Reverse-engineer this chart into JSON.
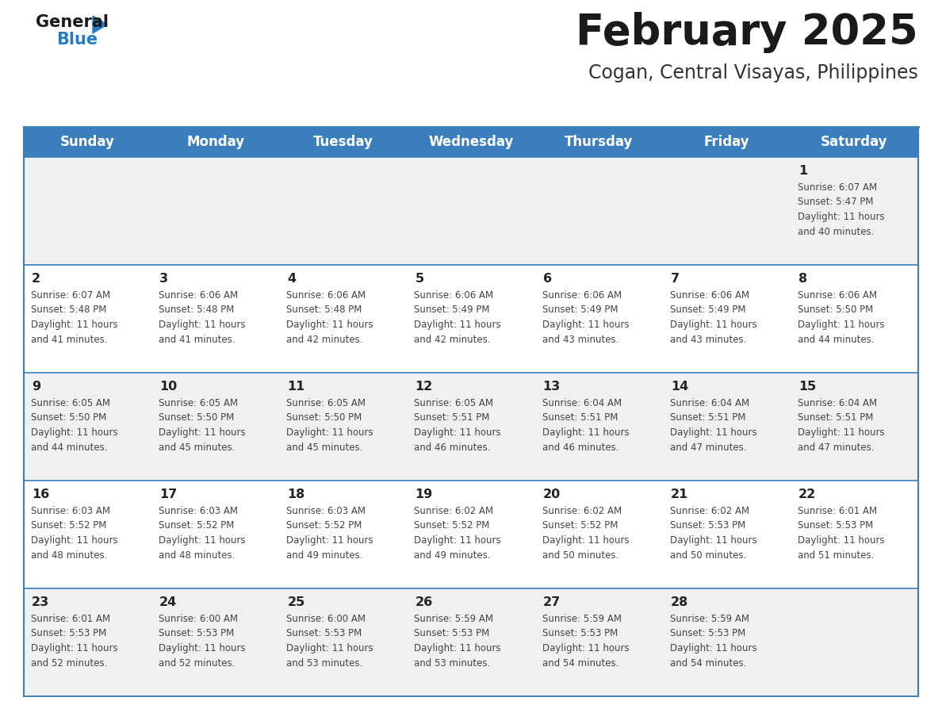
{
  "title": "February 2025",
  "subtitle": "Cogan, Central Visayas, Philippines",
  "days_of_week": [
    "Sunday",
    "Monday",
    "Tuesday",
    "Wednesday",
    "Thursday",
    "Friday",
    "Saturday"
  ],
  "header_bg": "#3a7fbc",
  "header_text": "#ffffff",
  "row_bg_odd": "#f0f0f0",
  "row_bg_even": "#ffffff",
  "border_color": "#3a7fbc",
  "text_color": "#444444",
  "day_num_color": "#222222",
  "logo_general_color": "#1a1a1a",
  "logo_blue_color": "#2a7bbf",
  "title_color": "#1a1a1a",
  "subtitle_color": "#333333",
  "calendar_data": [
    [
      null,
      null,
      null,
      null,
      null,
      null,
      {
        "day": 1,
        "sunrise": "6:07 AM",
        "sunset": "5:47 PM",
        "daylight_line1": "Daylight: 11 hours",
        "daylight_line2": "and 40 minutes."
      }
    ],
    [
      {
        "day": 2,
        "sunrise": "6:07 AM",
        "sunset": "5:48 PM",
        "daylight_line1": "Daylight: 11 hours",
        "daylight_line2": "and 41 minutes."
      },
      {
        "day": 3,
        "sunrise": "6:06 AM",
        "sunset": "5:48 PM",
        "daylight_line1": "Daylight: 11 hours",
        "daylight_line2": "and 41 minutes."
      },
      {
        "day": 4,
        "sunrise": "6:06 AM",
        "sunset": "5:48 PM",
        "daylight_line1": "Daylight: 11 hours",
        "daylight_line2": "and 42 minutes."
      },
      {
        "day": 5,
        "sunrise": "6:06 AM",
        "sunset": "5:49 PM",
        "daylight_line1": "Daylight: 11 hours",
        "daylight_line2": "and 42 minutes."
      },
      {
        "day": 6,
        "sunrise": "6:06 AM",
        "sunset": "5:49 PM",
        "daylight_line1": "Daylight: 11 hours",
        "daylight_line2": "and 43 minutes."
      },
      {
        "day": 7,
        "sunrise": "6:06 AM",
        "sunset": "5:49 PM",
        "daylight_line1": "Daylight: 11 hours",
        "daylight_line2": "and 43 minutes."
      },
      {
        "day": 8,
        "sunrise": "6:06 AM",
        "sunset": "5:50 PM",
        "daylight_line1": "Daylight: 11 hours",
        "daylight_line2": "and 44 minutes."
      }
    ],
    [
      {
        "day": 9,
        "sunrise": "6:05 AM",
        "sunset": "5:50 PM",
        "daylight_line1": "Daylight: 11 hours",
        "daylight_line2": "and 44 minutes."
      },
      {
        "day": 10,
        "sunrise": "6:05 AM",
        "sunset": "5:50 PM",
        "daylight_line1": "Daylight: 11 hours",
        "daylight_line2": "and 45 minutes."
      },
      {
        "day": 11,
        "sunrise": "6:05 AM",
        "sunset": "5:50 PM",
        "daylight_line1": "Daylight: 11 hours",
        "daylight_line2": "and 45 minutes."
      },
      {
        "day": 12,
        "sunrise": "6:05 AM",
        "sunset": "5:51 PM",
        "daylight_line1": "Daylight: 11 hours",
        "daylight_line2": "and 46 minutes."
      },
      {
        "day": 13,
        "sunrise": "6:04 AM",
        "sunset": "5:51 PM",
        "daylight_line1": "Daylight: 11 hours",
        "daylight_line2": "and 46 minutes."
      },
      {
        "day": 14,
        "sunrise": "6:04 AM",
        "sunset": "5:51 PM",
        "daylight_line1": "Daylight: 11 hours",
        "daylight_line2": "and 47 minutes."
      },
      {
        "day": 15,
        "sunrise": "6:04 AM",
        "sunset": "5:51 PM",
        "daylight_line1": "Daylight: 11 hours",
        "daylight_line2": "and 47 minutes."
      }
    ],
    [
      {
        "day": 16,
        "sunrise": "6:03 AM",
        "sunset": "5:52 PM",
        "daylight_line1": "Daylight: 11 hours",
        "daylight_line2": "and 48 minutes."
      },
      {
        "day": 17,
        "sunrise": "6:03 AM",
        "sunset": "5:52 PM",
        "daylight_line1": "Daylight: 11 hours",
        "daylight_line2": "and 48 minutes."
      },
      {
        "day": 18,
        "sunrise": "6:03 AM",
        "sunset": "5:52 PM",
        "daylight_line1": "Daylight: 11 hours",
        "daylight_line2": "and 49 minutes."
      },
      {
        "day": 19,
        "sunrise": "6:02 AM",
        "sunset": "5:52 PM",
        "daylight_line1": "Daylight: 11 hours",
        "daylight_line2": "and 49 minutes."
      },
      {
        "day": 20,
        "sunrise": "6:02 AM",
        "sunset": "5:52 PM",
        "daylight_line1": "Daylight: 11 hours",
        "daylight_line2": "and 50 minutes."
      },
      {
        "day": 21,
        "sunrise": "6:02 AM",
        "sunset": "5:53 PM",
        "daylight_line1": "Daylight: 11 hours",
        "daylight_line2": "and 50 minutes."
      },
      {
        "day": 22,
        "sunrise": "6:01 AM",
        "sunset": "5:53 PM",
        "daylight_line1": "Daylight: 11 hours",
        "daylight_line2": "and 51 minutes."
      }
    ],
    [
      {
        "day": 23,
        "sunrise": "6:01 AM",
        "sunset": "5:53 PM",
        "daylight_line1": "Daylight: 11 hours",
        "daylight_line2": "and 52 minutes."
      },
      {
        "day": 24,
        "sunrise": "6:00 AM",
        "sunset": "5:53 PM",
        "daylight_line1": "Daylight: 11 hours",
        "daylight_line2": "and 52 minutes."
      },
      {
        "day": 25,
        "sunrise": "6:00 AM",
        "sunset": "5:53 PM",
        "daylight_line1": "Daylight: 11 hours",
        "daylight_line2": "and 53 minutes."
      },
      {
        "day": 26,
        "sunrise": "5:59 AM",
        "sunset": "5:53 PM",
        "daylight_line1": "Daylight: 11 hours",
        "daylight_line2": "and 53 minutes."
      },
      {
        "day": 27,
        "sunrise": "5:59 AM",
        "sunset": "5:53 PM",
        "daylight_line1": "Daylight: 11 hours",
        "daylight_line2": "and 54 minutes."
      },
      {
        "day": 28,
        "sunrise": "5:59 AM",
        "sunset": "5:53 PM",
        "daylight_line1": "Daylight: 11 hours",
        "daylight_line2": "and 54 minutes."
      },
      null
    ]
  ]
}
